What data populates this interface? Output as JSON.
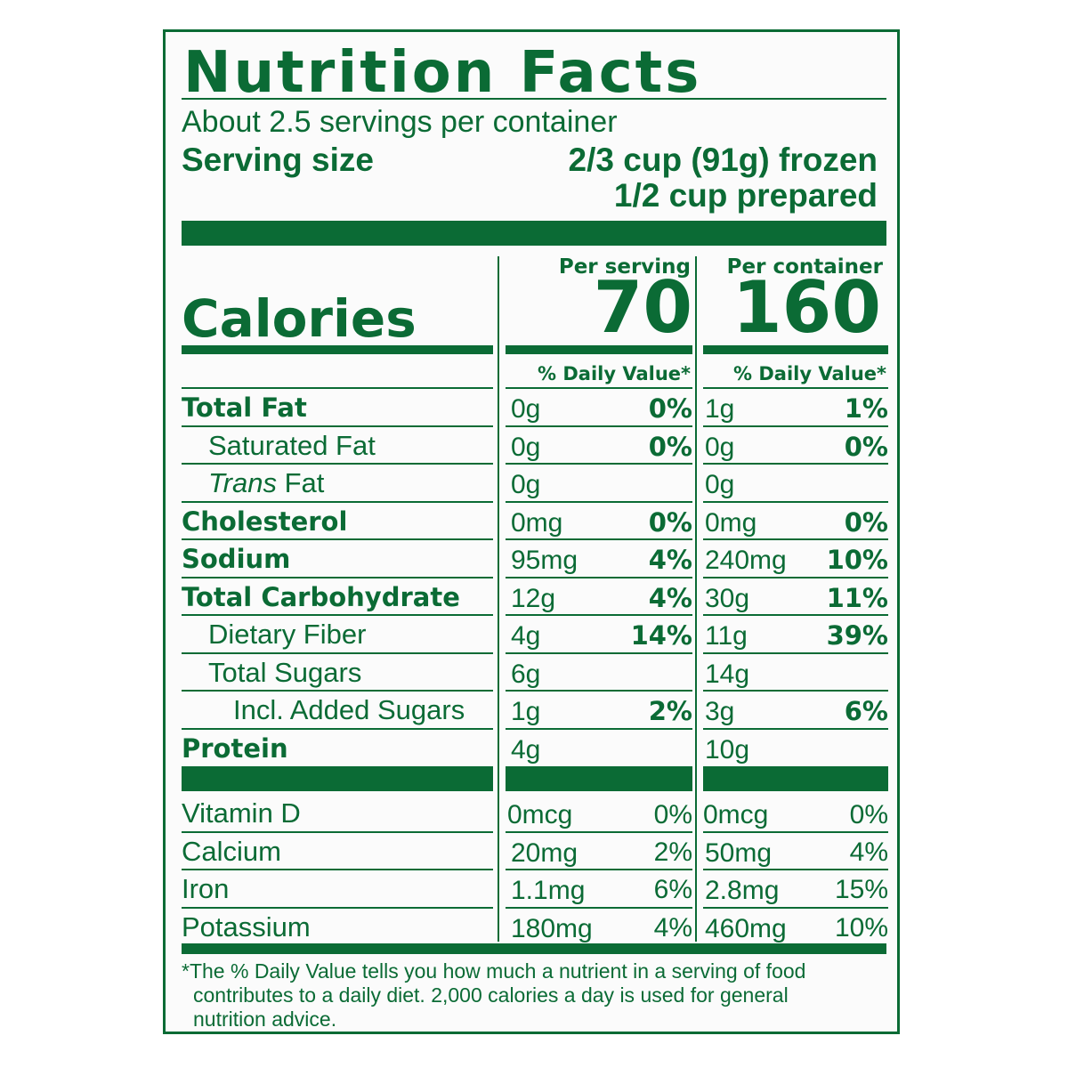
{
  "title": "Nutrition Facts",
  "servings_per_container": "About 2.5 servings per container",
  "serving_size_label": "Serving size",
  "serving_size_line1": "2/3 cup (91g) frozen",
  "serving_size_line2": "1/2 cup prepared",
  "calories_label": "Calories",
  "columns": {
    "per_serving": {
      "header": "Per serving",
      "calories": "70",
      "dv_header": "% Daily Value*"
    },
    "per_container": {
      "header": "Per container",
      "calories": "160",
      "dv_header": "% Daily Value*"
    }
  },
  "nutrients": [
    {
      "name": "Total Fat",
      "bold": true,
      "serving_amount": "0g",
      "serving_dv": "0%",
      "container_amount": "1g",
      "container_dv": "1%"
    },
    {
      "name": "Saturated Fat",
      "serving_amount": "0g",
      "serving_dv": "0%",
      "container_amount": "0g",
      "container_dv": "0%"
    },
    {
      "name_italic": "Trans",
      "name": " Fat",
      "serving_amount": "0g",
      "serving_dv": "",
      "container_amount": "0g",
      "container_dv": ""
    },
    {
      "name": "Cholesterol",
      "bold": true,
      "serving_amount": "0mg",
      "serving_dv": "0%",
      "container_amount": "0mg",
      "container_dv": "0%"
    },
    {
      "name": "Sodium",
      "bold": true,
      "serving_amount": "95mg",
      "serving_dv": "4%",
      "container_amount": "240mg",
      "container_dv": "10%"
    },
    {
      "name": "Total Carbohydrate",
      "bold": true,
      "serving_amount": "12g",
      "serving_dv": "4%",
      "container_amount": "30g",
      "container_dv": "11%"
    },
    {
      "name": "Dietary Fiber",
      "serving_amount": "4g",
      "serving_dv": "14%",
      "container_amount": "11g",
      "container_dv": "39%"
    },
    {
      "name": "Total Sugars",
      "serving_amount": "6g",
      "serving_dv": "",
      "container_amount": "14g",
      "container_dv": ""
    },
    {
      "name": "Incl. Added Sugars",
      "serving_amount": "1g",
      "serving_dv": "2%",
      "container_amount": "3g",
      "container_dv": "6%"
    },
    {
      "name": "Protein",
      "bold": true,
      "serving_amount": "4g",
      "serving_dv": "",
      "container_amount": "10g",
      "container_dv": ""
    }
  ],
  "vitamins": [
    {
      "name": "Vitamin D",
      "serving_amount": "0mcg",
      "serving_dv": "0%",
      "container_amount": "0mcg",
      "container_dv": "0%"
    },
    {
      "name": "Calcium",
      "serving_amount": "20mg",
      "serving_dv": "2%",
      "container_amount": "50mg",
      "container_dv": "4%"
    },
    {
      "name": "Iron",
      "serving_amount": "1.1mg",
      "serving_dv": "6%",
      "container_amount": "2.8mg",
      "container_dv": "15%"
    },
    {
      "name": "Potassium",
      "serving_amount": "180mg",
      "serving_dv": "4%",
      "container_amount": "460mg",
      "container_dv": "10%"
    }
  ],
  "footnote_line1": "*The % Daily Value tells you how much a nutrient in a serving of food",
  "footnote_line2": "contributes to a daily diet. 2,000 calories a day is used for general",
  "footnote_line3": "nutrition advice.",
  "colors": {
    "ink": "#0b6b35",
    "background": "#fbfbfb"
  }
}
